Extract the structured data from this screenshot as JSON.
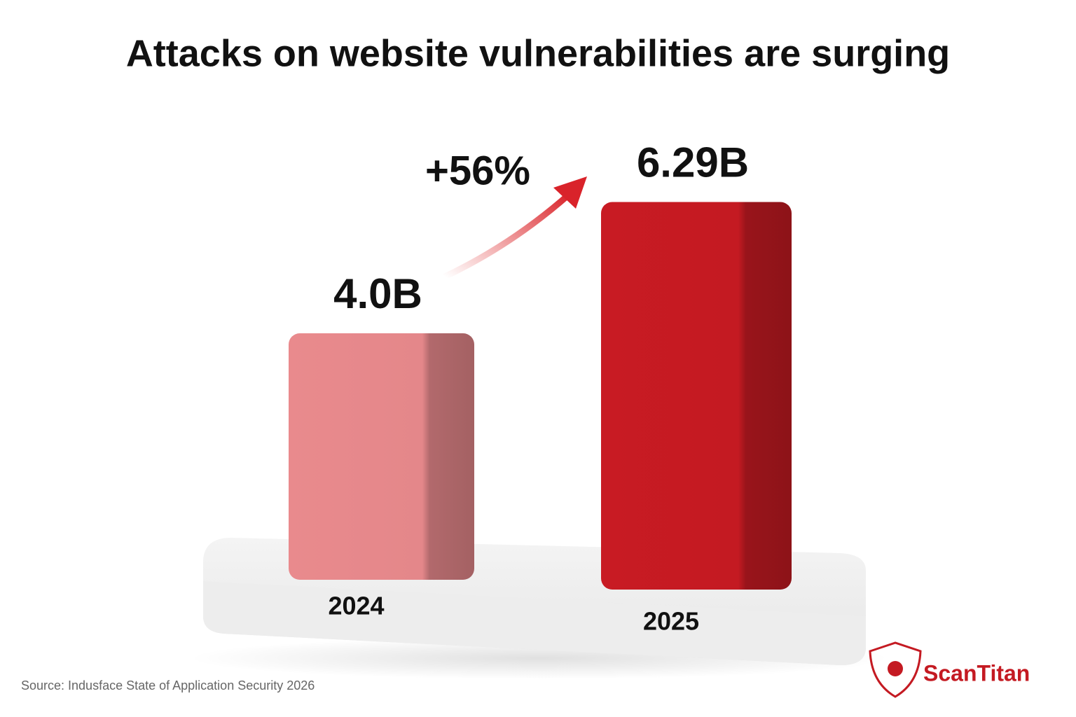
{
  "chart_data": {
    "type": "bar",
    "title": "Attacks on website vulnerabilities are surging",
    "categories": [
      "2024",
      "2025"
    ],
    "values": [
      4.0,
      6.29
    ],
    "value_labels": [
      "4.0B",
      "6.29B"
    ],
    "colors": [
      "#e4878a",
      "#c41a22"
    ],
    "annotation": "+56%",
    "source": "Source: Indusface State of Application Security 2026",
    "brand": "ScanTitan"
  }
}
